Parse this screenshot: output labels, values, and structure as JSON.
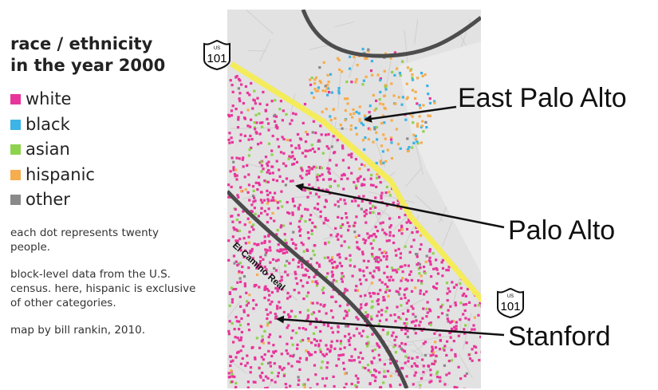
{
  "legend": {
    "title_line1": "race / ethnicity",
    "title_line2": "in the year 2000",
    "items": [
      {
        "label": "white",
        "color": "#e8359b"
      },
      {
        "label": "black",
        "color": "#3cb4e5"
      },
      {
        "label": "asian",
        "color": "#8fd24e"
      },
      {
        "label": "hispanic",
        "color": "#f5ad4e"
      },
      {
        "label": "other",
        "color": "#8a8a8a"
      }
    ]
  },
  "notes": {
    "dots": "each dot represents twenty people.",
    "source": "block-level data from the U.S. census. here, hispanic is exclusive of other categories.",
    "credit": "map by bill rankin, 2010."
  },
  "map": {
    "cities": {
      "east_palo_alto": "East Palo Alto",
      "palo_alto": "Palo Alto",
      "stanford": "Stanford"
    },
    "road_name": "El Camino Real",
    "highway": {
      "prefix": "US",
      "number": "101"
    },
    "colors": {
      "highway": "#f4ec5a",
      "road": "#4a4a4a",
      "land": "#e2e2e2"
    }
  }
}
